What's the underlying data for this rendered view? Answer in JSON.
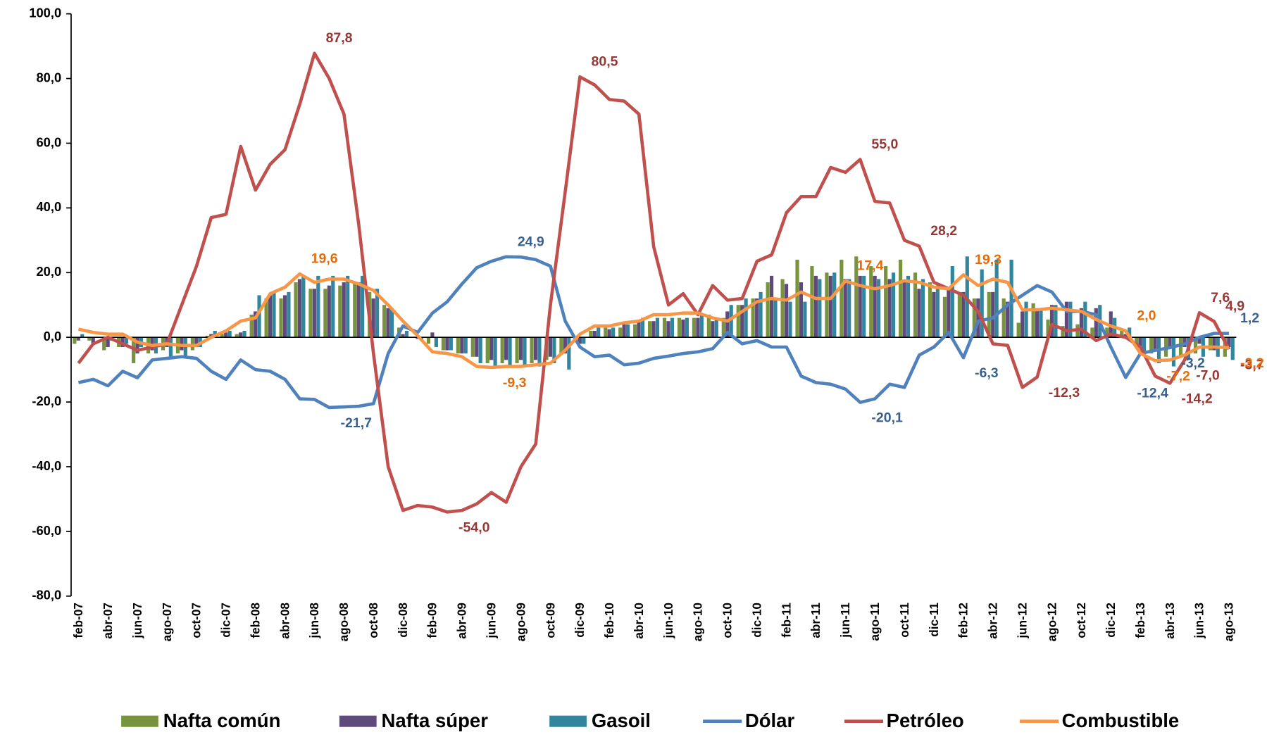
{
  "chart_data": {
    "type": "combo",
    "categories": [
      "feb-07",
      null,
      "abr-07",
      null,
      "jun-07",
      null,
      "ago-07",
      null,
      "oct-07",
      null,
      "dic-07",
      null,
      "feb-08",
      null,
      "abr-08",
      null,
      "jun-08",
      null,
      "ago-08",
      null,
      "oct-08",
      null,
      "dic-08",
      null,
      "feb-09",
      null,
      "abr-09",
      null,
      "jun-09",
      null,
      "ago-09",
      null,
      "oct-09",
      null,
      "dic-09",
      null,
      "feb-10",
      null,
      "abr-10",
      null,
      "jun-10",
      null,
      "ago-10",
      null,
      "oct-10",
      null,
      "dic-10",
      null,
      "feb-11",
      null,
      "abr-11",
      null,
      "jun-11",
      null,
      "ago-11",
      null,
      "oct-11",
      null,
      "dic-11",
      null,
      "feb-12",
      null,
      "abr-12",
      null,
      "jun-12",
      null,
      "ago-12",
      null,
      "oct-12",
      null,
      "dic-12",
      null,
      "feb-13",
      null,
      "abr-13",
      null,
      "jun-13",
      null,
      "ago-13"
    ],
    "ylim": [
      -80,
      100
    ],
    "yticks": [
      {
        "value": -80,
        "label": "-80,0"
      },
      {
        "value": -60,
        "label": "-60,0"
      },
      {
        "value": -40,
        "label": "-40,0"
      },
      {
        "value": -20,
        "label": "-20,0"
      },
      {
        "value": 0,
        "label": "0,0"
      },
      {
        "value": 20,
        "label": "20,0"
      },
      {
        "value": 40,
        "label": "40,0"
      },
      {
        "value": 60,
        "label": "60,0"
      },
      {
        "value": 80,
        "label": "80,0"
      },
      {
        "value": 100,
        "label": "100,0"
      }
    ],
    "legend": "bottom",
    "series": [
      {
        "name": "Nafta común",
        "type": "bar",
        "color": "#77933c",
        "values": [
          -2,
          -1,
          -4,
          -3,
          -8,
          -5,
          -4,
          -5,
          -4,
          0.5,
          1,
          1,
          7,
          12,
          12,
          17,
          15,
          15,
          16,
          17,
          14,
          10,
          3,
          0,
          -2,
          -4,
          -5,
          -6,
          -8,
          -8,
          -8,
          -8,
          -7,
          -5,
          -1,
          2,
          3,
          3,
          4,
          5,
          6,
          6,
          6,
          7,
          6,
          10,
          12,
          17,
          18,
          24,
          22,
          20,
          24,
          25,
          22,
          22,
          24,
          20,
          17,
          12.5,
          14,
          12,
          14,
          12,
          4.5,
          10.5,
          5.5,
          3.5,
          4,
          3,
          3,
          2,
          -3,
          -5,
          -6,
          -6,
          -5,
          -4,
          -6
        ]
      },
      {
        "name": "Nafta súper",
        "type": "bar",
        "color": "#604a7b",
        "values": [
          -1,
          -2,
          -3,
          -3,
          -5,
          -4,
          -3,
          -4,
          -3,
          1,
          1.5,
          1.5,
          8,
          13,
          13,
          18,
          15,
          16,
          17,
          17,
          12,
          9,
          1,
          -0.5,
          1.5,
          -4,
          -5,
          -6,
          -7,
          -7,
          -7,
          -7,
          -6,
          -5,
          -2,
          2,
          2.5,
          4,
          5,
          5,
          5,
          5.5,
          6,
          5,
          8,
          10,
          12,
          19,
          16.5,
          17,
          19,
          19,
          18,
          19,
          19,
          18,
          17,
          15,
          14,
          15,
          14,
          12,
          14,
          11,
          8,
          9,
          10,
          11,
          9,
          9,
          8,
          1,
          -3,
          -4,
          -3,
          -3,
          -2,
          -4,
          -3
        ]
      },
      {
        "name": "Gasoil",
        "type": "bar",
        "color": "#31859c",
        "values": [
          1,
          0,
          -1,
          -2,
          -3,
          -5,
          -6,
          -6,
          -3,
          2,
          2,
          2,
          13,
          14,
          14,
          19,
          19,
          19,
          19,
          19,
          15,
          9,
          2,
          -1,
          -3,
          -4,
          -5,
          -8,
          -9,
          -9,
          -9,
          -9,
          -8,
          -10,
          -2,
          3,
          3,
          4,
          6,
          6,
          6,
          6,
          7,
          6,
          10,
          12,
          14,
          12,
          11,
          11,
          18,
          20,
          18,
          19,
          18,
          20,
          19,
          18,
          16,
          22,
          25,
          21,
          24,
          24,
          11,
          9,
          10,
          11,
          11,
          10,
          6,
          3,
          -5,
          -8,
          -9,
          -7,
          -6,
          -6,
          -7
        ]
      },
      {
        "name": "Dólar",
        "type": "line",
        "color": "#4f81bd",
        "label_color": "#376092",
        "values": [
          -14,
          -13,
          -15,
          -10.5,
          -12.5,
          -7,
          -6.5,
          -6,
          -6.5,
          -10.5,
          -13,
          -7,
          -10,
          -10.5,
          -13,
          -19,
          -19.2,
          -21.7,
          -21.5,
          -21.3,
          -20.5,
          -5,
          3.5,
          1.5,
          7.5,
          11,
          16.5,
          21.5,
          23.5,
          24.9,
          24.8,
          24,
          22,
          5,
          -3,
          -6,
          -5.5,
          -8.5,
          -8,
          -6.5,
          -5.8,
          -5,
          -4.5,
          -3.5,
          1.5,
          -2,
          -1,
          -3,
          -3,
          -12,
          -14,
          -14.5,
          -16,
          -20.1,
          -19,
          -14.5,
          -15.5,
          -5.5,
          -3,
          1.5,
          -6.3,
          5,
          6,
          10,
          13,
          16,
          14,
          8,
          8,
          7,
          -3,
          -12.4,
          -5,
          -4,
          -3.2,
          -2,
          0,
          1.2,
          1.2
        ],
        "value_labels": [
          null,
          null,
          null,
          null,
          null,
          null,
          null,
          null,
          null,
          null,
          null,
          null,
          null,
          null,
          null,
          null,
          null,
          "-21,7",
          null,
          null,
          null,
          null,
          null,
          null,
          null,
          null,
          null,
          null,
          null,
          "24,9",
          null,
          null,
          null,
          null,
          null,
          null,
          null,
          null,
          null,
          null,
          null,
          null,
          null,
          null,
          null,
          null,
          null,
          null,
          null,
          null,
          null,
          null,
          null,
          "-20,1",
          null,
          null,
          null,
          null,
          null,
          null,
          "-6,3",
          null,
          null,
          null,
          null,
          null,
          null,
          null,
          null,
          null,
          null,
          "-12,4",
          null,
          null,
          "-3,2",
          null,
          null,
          null,
          "1,2"
        ]
      },
      {
        "name": "Petróleo",
        "type": "line",
        "color": "#c0504d",
        "label_color": "#953735",
        "values": [
          -8,
          -2,
          0,
          -2,
          -4,
          -3,
          -2,
          10,
          22,
          37,
          38,
          59,
          45.5,
          53.5,
          58,
          72,
          87.8,
          80,
          69,
          35,
          -5,
          -40,
          -53.5,
          -52,
          -52.5,
          -54,
          -53.5,
          -51.5,
          -48,
          -51,
          -40,
          -33,
          10,
          45,
          80.5,
          78,
          73.5,
          73,
          69,
          28,
          10,
          13.5,
          7,
          16,
          11.5,
          12,
          23.5,
          25.5,
          38.5,
          43.5,
          43.5,
          52.5,
          51,
          55,
          42,
          41.5,
          30,
          28.2,
          17,
          15,
          13,
          8,
          -2,
          -2.5,
          -15.5,
          -12.3,
          4,
          2,
          2.5,
          -1,
          1,
          0,
          -3,
          -12,
          -14.2,
          -7,
          7.6,
          4.9,
          -3.7
        ],
        "value_labels": [
          null,
          null,
          null,
          null,
          null,
          null,
          null,
          null,
          null,
          null,
          null,
          null,
          null,
          null,
          null,
          null,
          "87,8",
          null,
          null,
          null,
          null,
          null,
          null,
          null,
          null,
          "-54,0",
          null,
          null,
          null,
          null,
          null,
          null,
          null,
          null,
          "80,5",
          null,
          null,
          null,
          null,
          null,
          null,
          null,
          null,
          null,
          null,
          null,
          null,
          null,
          null,
          null,
          null,
          null,
          null,
          "55,0",
          null,
          null,
          null,
          "28,2",
          null,
          null,
          null,
          null,
          null,
          null,
          null,
          "-12,3",
          null,
          null,
          null,
          null,
          null,
          null,
          null,
          null,
          "-14,2",
          "-7,0",
          "7,6",
          "4,9",
          "-3,7"
        ]
      },
      {
        "name": "Combustible",
        "type": "line",
        "color": "#f79646",
        "label_color": "#e46c0a",
        "values": [
          2.5,
          1.5,
          1,
          1,
          -1.5,
          -2.5,
          -2,
          -2.5,
          -2.5,
          0,
          2,
          5,
          6,
          13.5,
          15.5,
          19.6,
          17,
          18,
          18,
          16.5,
          14.5,
          10,
          5,
          0.5,
          -4.5,
          -5,
          -6,
          -9,
          -9.3,
          -9,
          -9,
          -8.5,
          -8,
          -4,
          1,
          3.5,
          3.5,
          4.5,
          5,
          7,
          7,
          7.5,
          7.5,
          6,
          5,
          8,
          11,
          12,
          11.5,
          14,
          12,
          12,
          17.4,
          16,
          15,
          16,
          17.5,
          17,
          15.5,
          15,
          19.3,
          16,
          18,
          17,
          8.5,
          8.5,
          9,
          8.5,
          8,
          5.5,
          3.5,
          2,
          -5,
          -7.2,
          -7,
          -5.5,
          -3,
          -3,
          -3.2
        ],
        "value_labels": [
          null,
          null,
          null,
          null,
          null,
          null,
          null,
          null,
          null,
          null,
          null,
          null,
          null,
          null,
          null,
          "19,6",
          null,
          null,
          null,
          null,
          null,
          null,
          null,
          null,
          null,
          null,
          null,
          null,
          "-9,3",
          null,
          null,
          null,
          null,
          null,
          null,
          null,
          null,
          null,
          null,
          null,
          null,
          null,
          null,
          null,
          null,
          null,
          null,
          null,
          null,
          null,
          null,
          null,
          "17,4",
          null,
          null,
          null,
          null,
          null,
          null,
          null,
          "19,3",
          null,
          null,
          null,
          null,
          null,
          null,
          null,
          null,
          null,
          null,
          "2,0",
          null,
          "-7,2",
          null,
          null,
          null,
          null,
          "-3,2"
        ]
      }
    ]
  }
}
